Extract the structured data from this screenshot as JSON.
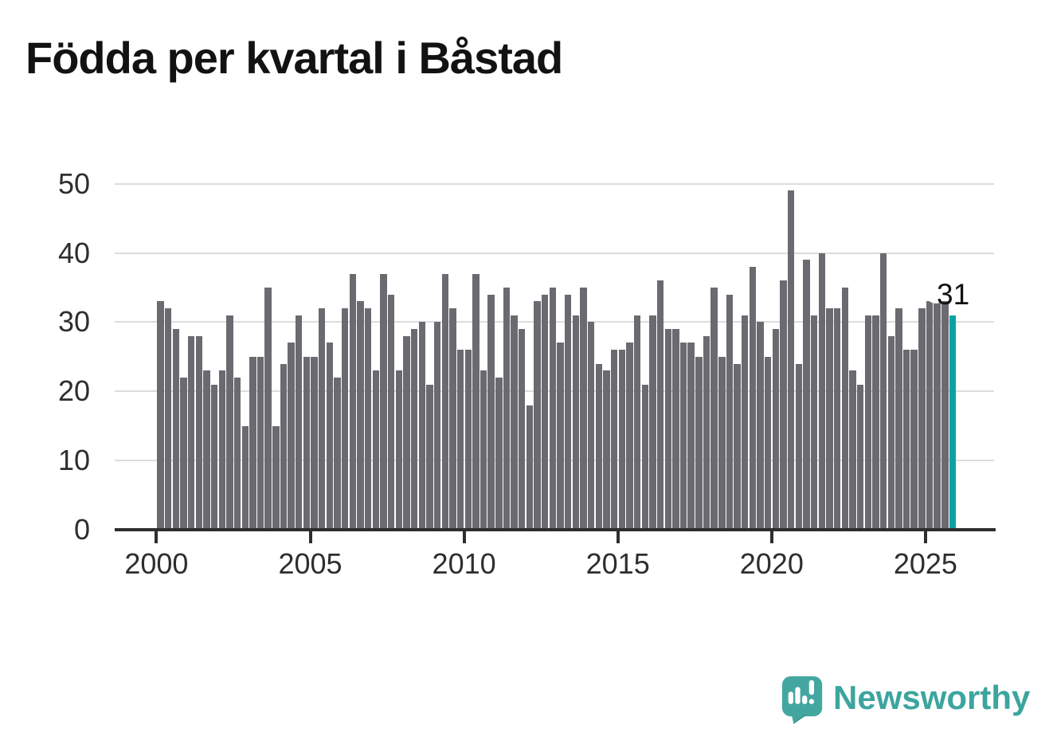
{
  "title": "Födda per kvartal i Båstad",
  "chart_data": {
    "type": "bar",
    "title": "Födda per kvartal i Båstad",
    "xlabel": "",
    "ylabel": "",
    "start_quarter": "2000 Q1",
    "end_quarter": "2025 Q4",
    "values": [
      33,
      32,
      29,
      22,
      28,
      28,
      23,
      21,
      23,
      31,
      22,
      15,
      25,
      25,
      35,
      15,
      24,
      27,
      31,
      25,
      25,
      32,
      27,
      22,
      32,
      37,
      33,
      32,
      23,
      37,
      34,
      23,
      28,
      29,
      30,
      21,
      30,
      37,
      32,
      26,
      26,
      37,
      23,
      34,
      22,
      35,
      31,
      29,
      18,
      33,
      34,
      35,
      27,
      34,
      31,
      35,
      30,
      24,
      23,
      26,
      26,
      27,
      31,
      21,
      31,
      36,
      29,
      29,
      27,
      27,
      25,
      28,
      35,
      25,
      34,
      24,
      31,
      38,
      30,
      25,
      29,
      36,
      49,
      24,
      39,
      31,
      40,
      32,
      32,
      35,
      23,
      21,
      31,
      31,
      40,
      28,
      32,
      26,
      26,
      32,
      33,
      33,
      33,
      31
    ],
    "y_ticks": [
      0,
      10,
      20,
      30,
      40,
      50
    ],
    "x_ticks": [
      2000,
      2005,
      2010,
      2015,
      2020,
      2025
    ],
    "ylim": [
      0,
      50
    ],
    "grid": true,
    "legend": false,
    "bar_color": "#6b6a70",
    "highlight": {
      "index": 103,
      "value": 31,
      "label": "31",
      "color": "#09a3a3"
    }
  },
  "branding": {
    "name": "Newsworthy",
    "logo_icon": "speech-bubble-bar-chart-icon",
    "color": "#3ba59e"
  }
}
